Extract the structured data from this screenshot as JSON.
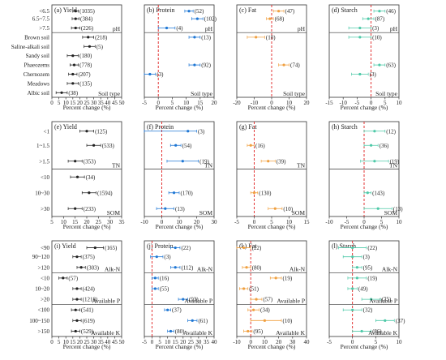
{
  "axis_label": "Percent change (%)",
  "colors": {
    "yield": "#222222",
    "protein": "#1f77d4",
    "fat": "#f0a040",
    "starch": "#4ec9a8",
    "zero_line": "#e02020"
  },
  "chart_data": [
    {
      "id": "a",
      "type": "scatter",
      "title": "(a) Yield",
      "xlim": [
        0,
        50
      ],
      "ticks": [
        0,
        5,
        10,
        15,
        20,
        25,
        30,
        35,
        40,
        45,
        50
      ],
      "groups": [
        {
          "label": "pH",
          "rows": [
            {
              "cat": "<6.5",
              "v": 17,
              "lo": 15,
              "hi": 19,
              "n": "(1035)"
            },
            {
              "cat": "6.5~7.5",
              "v": 17,
              "lo": 14.5,
              "hi": 19.5,
              "n": "(384)"
            },
            {
              "cat": ">7.5",
              "v": 17,
              "lo": 14,
              "hi": 20,
              "n": "(226)"
            }
          ]
        },
        {
          "label": "Soil type",
          "rows": [
            {
              "cat": "Brown soil",
              "v": 26,
              "lo": 22,
              "hi": 30,
              "n": "(218)"
            },
            {
              "cat": "Saline-alkali soil",
              "v": 27,
              "lo": 23,
              "hi": 31,
              "n": "(5)"
            },
            {
              "cat": "Sandy soil",
              "v": 15,
              "lo": 11,
              "hi": 19,
              "n": "(180)"
            },
            {
              "cat": "Phaeozems",
              "v": 16,
              "lo": 13,
              "hi": 19,
              "n": "(778)"
            },
            {
              "cat": "Chernozem",
              "v": 15,
              "lo": 12,
              "hi": 18,
              "n": "(207)"
            },
            {
              "cat": "Meadows",
              "v": 15,
              "lo": 11,
              "hi": 19,
              "n": "(135)"
            },
            {
              "cat": "Albic soil",
              "v": 7,
              "lo": 3,
              "hi": 11,
              "n": "(38)"
            }
          ]
        }
      ]
    },
    {
      "id": "b",
      "type": "scatter",
      "title": "(b) Protein",
      "xlim": [
        -5,
        20
      ],
      "ticks": [
        -5,
        0,
        5,
        10,
        15,
        20
      ],
      "groups": [
        {
          "label": "pH",
          "rows": [
            {
              "v": 11,
              "lo": 9.5,
              "hi": 12.5,
              "n": "(52)"
            },
            {
              "v": 14,
              "lo": 12,
              "hi": 16,
              "n": "(102)"
            },
            {
              "v": 3,
              "lo": 0,
              "hi": 6,
              "n": "(4)"
            }
          ]
        },
        {
          "label": "Soil type",
          "rows": [
            {
              "v": 13,
              "lo": 11,
              "hi": 15,
              "n": "(13)"
            },
            {
              "v": null
            },
            {
              "v": null
            },
            {
              "v": 13,
              "lo": 11,
              "hi": 15,
              "n": "(92)"
            },
            {
              "v": -3,
              "lo": -5,
              "hi": -1,
              "n": "(3)"
            },
            {
              "v": null
            },
            {
              "v": null
            }
          ]
        }
      ]
    },
    {
      "id": "c",
      "type": "scatter",
      "title": "(c) Fat",
      "xlim": [
        -20,
        20
      ],
      "ticks": [
        -20,
        -10,
        0,
        10,
        20
      ],
      "groups": [
        {
          "label": "pH",
          "rows": [
            {
              "v": 4,
              "lo": 1,
              "hi": 7,
              "n": "(47)"
            },
            {
              "v": -1,
              "lo": -3,
              "hi": 1,
              "n": "(68)"
            },
            {
              "v": null
            }
          ]
        },
        {
          "label": "Soil type",
          "rows": [
            {
              "v": -9,
              "lo": -14,
              "hi": -4,
              "n": "(10)"
            },
            {
              "v": null
            },
            {
              "v": null
            },
            {
              "v": 7,
              "lo": 4,
              "hi": 10,
              "n": "(74)"
            },
            {
              "v": null
            },
            {
              "v": null
            },
            {
              "v": null
            }
          ]
        }
      ]
    },
    {
      "id": "d",
      "type": "scatter",
      "title": "(d) Starch",
      "xlim": [
        -15,
        10
      ],
      "ticks": [
        -15,
        -10,
        -5,
        0,
        5,
        10
      ],
      "groups": [
        {
          "label": "pH",
          "rows": [
            {
              "v": 3,
              "lo": 1,
              "hi": 5,
              "n": "(46)"
            },
            {
              "v": -1,
              "lo": -3,
              "hi": 1,
              "n": "(87)"
            },
            {
              "v": -4,
              "lo": -8,
              "hi": 0,
              "n": "(3)"
            }
          ]
        },
        {
          "label": "Soil type",
          "rows": [
            {
              "v": -4,
              "lo": -8,
              "hi": 0,
              "n": "(10)"
            },
            {
              "v": null
            },
            {
              "v": null
            },
            {
              "v": 3,
              "lo": 1,
              "hi": 5,
              "n": "(63)"
            },
            {
              "v": -4,
              "lo": -7,
              "hi": -1,
              "n": "(3)"
            },
            {
              "v": null
            },
            {
              "v": null
            }
          ]
        }
      ]
    },
    {
      "id": "e",
      "type": "scatter",
      "title": "(e) Yield",
      "xlim": [
        5,
        35
      ],
      "ticks": [
        5,
        10,
        15,
        20,
        25,
        30,
        35
      ],
      "groups": [
        {
          "label": "TN",
          "rows": [
            {
              "cat": "<1",
              "v": 20,
              "lo": 17,
              "hi": 23,
              "n": "(125)"
            },
            {
              "cat": "1~1.5",
              "v": 23,
              "lo": 20,
              "hi": 26,
              "n": "(533)"
            },
            {
              "cat": ">1.5",
              "v": 15,
              "lo": 12,
              "hi": 18,
              "n": "(353)"
            }
          ]
        },
        {
          "label": "SOM",
          "rows": [
            {
              "cat": "<10",
              "v": 16,
              "lo": 13,
              "hi": 19,
              "n": "(34)"
            },
            {
              "cat": "10~30",
              "v": 21,
              "lo": 18,
              "hi": 24,
              "n": "(1594)"
            },
            {
              "cat": ">30",
              "v": 15,
              "lo": 12,
              "hi": 18,
              "n": "(233)"
            }
          ]
        }
      ]
    },
    {
      "id": "f",
      "type": "scatter",
      "title": "(f) Protein",
      "xlim": [
        -10,
        30
      ],
      "ticks": [
        -10,
        0,
        10,
        20,
        30
      ],
      "groups": [
        {
          "label": "TN",
          "rows": [
            {
              "v": 15,
              "lo": -10,
              "hi": 20,
              "n": "(3)"
            },
            {
              "v": 8,
              "lo": 5,
              "hi": 11,
              "n": "(54)"
            },
            {
              "v": 12,
              "lo": 3,
              "hi": 21,
              "n": "(19)"
            }
          ]
        },
        {
          "label": "SOM",
          "rows": [
            {
              "v": null
            },
            {
              "v": 7,
              "lo": 4,
              "hi": 10,
              "n": "(170)"
            },
            {
              "v": 2,
              "lo": -3,
              "hi": 7,
              "n": "(13)"
            }
          ]
        }
      ]
    },
    {
      "id": "g",
      "type": "scatter",
      "title": "(g) Fat",
      "xlim": [
        -5,
        15
      ],
      "ticks": [
        -5,
        0,
        5,
        10,
        15
      ],
      "groups": [
        {
          "label": "TN",
          "rows": [
            {
              "v": null
            },
            {
              "v": -1,
              "lo": -2,
              "hi": 0,
              "n": "(16)"
            },
            {
              "v": 4,
              "lo": 2,
              "hi": 6,
              "n": "(39)"
            }
          ]
        },
        {
          "label": "SOM",
          "rows": [
            {
              "v": null
            },
            {
              "v": 0,
              "lo": -1,
              "hi": 1,
              "n": "(130)"
            },
            {
              "v": 6,
              "lo": 4,
              "hi": 8,
              "n": "(10)"
            }
          ]
        }
      ]
    },
    {
      "id": "h",
      "type": "scatter",
      "title": "(h) Starch",
      "xlim": [
        -10,
        10
      ],
      "ticks": [
        -10,
        -5,
        0,
        5,
        10
      ],
      "groups": [
        {
          "label": "TN",
          "rows": [
            {
              "v": 3,
              "lo": 0,
              "hi": 6,
              "n": "(12)"
            },
            {
              "v": 2,
              "lo": 0,
              "hi": 4,
              "n": "(36)"
            },
            {
              "v": 3,
              "lo": -1,
              "hi": 7,
              "n": "(19)"
            }
          ]
        },
        {
          "label": "SOM",
          "rows": [
            {
              "v": null
            },
            {
              "v": 1,
              "lo": 0,
              "hi": 2,
              "n": "(143)"
            },
            {
              "v": 4,
              "lo": 0,
              "hi": 8,
              "n": "(13)"
            }
          ]
        }
      ]
    },
    {
      "id": "i",
      "type": "scatter",
      "title": "(i) Yield",
      "xlim": [
        0,
        50
      ],
      "ticks": [
        0,
        5,
        10,
        15,
        20,
        25,
        30,
        35,
        40,
        45,
        50
      ],
      "groups": [
        {
          "label": "Alk-N",
          "rows": [
            {
              "cat": "<90",
              "v": 31,
              "lo": 25,
              "hi": 37,
              "n": "(165)"
            },
            {
              "cat": "90~120",
              "v": 18,
              "lo": 15,
              "hi": 21,
              "n": "(375)"
            },
            {
              "cat": ">120",
              "v": 21,
              "lo": 18,
              "hi": 24,
              "n": "(303)"
            }
          ]
        },
        {
          "label": "Available P",
          "rows": [
            {
              "cat": "<10",
              "v": 8,
              "lo": 5,
              "hi": 11,
              "n": "(57)"
            },
            {
              "cat": "10~20",
              "v": 18,
              "lo": 15,
              "hi": 21,
              "n": "(424)"
            },
            {
              "cat": ">20",
              "v": 18,
              "lo": 15,
              "hi": 21,
              "n": "(1218)"
            }
          ]
        },
        {
          "label": "Available K",
          "rows": [
            {
              "cat": "<100",
              "v": 17,
              "lo": 14,
              "hi": 20,
              "n": "(541)"
            },
            {
              "cat": "100~150",
              "v": 18,
              "lo": 15,
              "hi": 21,
              "n": "(619)"
            },
            {
              "cat": ">150",
              "v": 17,
              "lo": 14,
              "hi": 20,
              "n": "(529)"
            }
          ]
        }
      ]
    },
    {
      "id": "j",
      "type": "scatter",
      "title": "(j) Protein",
      "xlim": [
        -5,
        40
      ],
      "ticks": [
        -5,
        0,
        5,
        10,
        15,
        20,
        25,
        30,
        35,
        40
      ],
      "groups": [
        {
          "label": "Alk-N",
          "rows": [
            {
              "v": 15,
              "lo": 12,
              "hi": 18,
              "n": "(22)"
            },
            {
              "v": 3,
              "lo": -1,
              "hi": 7,
              "n": "(3)"
            },
            {
              "v": 15,
              "lo": 12,
              "hi": 18,
              "n": "(112)"
            }
          ]
        },
        {
          "label": "Available P",
          "rows": [
            {
              "v": 2,
              "lo": 0,
              "hi": 4,
              "n": "(16)"
            },
            {
              "v": 2,
              "lo": 0,
              "hi": 4,
              "n": "(55)"
            },
            {
              "v": 20,
              "lo": 17,
              "hi": 23,
              "n": "(93)"
            }
          ]
        },
        {
          "label": "Available K",
          "rows": [
            {
              "v": 10,
              "lo": 8,
              "hi": 12,
              "n": "(37)"
            },
            {
              "v": 26,
              "lo": 23,
              "hi": 29,
              "n": "(61)"
            },
            {
              "v": 12,
              "lo": 10,
              "hi": 14,
              "n": "(80)"
            }
          ]
        }
      ]
    },
    {
      "id": "k",
      "type": "scatter",
      "title": "(k) Fat",
      "xlim": [
        -10,
        40
      ],
      "ticks": [
        -10,
        0,
        10,
        20,
        30,
        40
      ],
      "groups": [
        {
          "label": "Alk-N",
          "rows": [
            {
              "v": -5,
              "lo": -10,
              "hi": 0,
              "n": "(22)"
            },
            {
              "v": null
            },
            {
              "v": -3,
              "lo": -6,
              "hi": 0,
              "n": "(80)"
            }
          ]
        },
        {
          "label": "Available P",
          "rows": [
            {
              "v": 18,
              "lo": 14,
              "hi": 22,
              "n": "(19)"
            },
            {
              "v": -5,
              "lo": -8,
              "hi": -2,
              "n": "(51)"
            },
            {
              "v": 4,
              "lo": 0,
              "hi": 8,
              "n": "(57)"
            }
          ]
        },
        {
          "label": "Available K",
          "rows": [
            {
              "v": 2,
              "lo": -2,
              "hi": 6,
              "n": "(34)"
            },
            {
              "v": 10,
              "lo": 0,
              "hi": 22,
              "n": "(10)"
            },
            {
              "v": -2,
              "lo": -5,
              "hi": 1,
              "n": "(95)"
            }
          ]
        }
      ]
    },
    {
      "id": "l",
      "type": "scatter",
      "title": "(l) Starch",
      "xlim": [
        -5,
        10
      ],
      "ticks": [
        -5,
        0,
        5,
        10
      ],
      "groups": [
        {
          "label": "Alk-N",
          "rows": [
            {
              "v": 0,
              "lo": -3,
              "hi": 3,
              "n": "(22)"
            },
            {
              "v": 0,
              "lo": -2,
              "hi": 2,
              "n": "(3)"
            },
            {
              "v": 1,
              "lo": 0,
              "hi": 2,
              "n": "(95)"
            }
          ]
        },
        {
          "label": "Available P",
          "rows": [
            {
              "v": 1,
              "lo": -1,
              "hi": 3,
              "n": "(19)"
            },
            {
              "v": 0,
              "lo": -1,
              "hi": 1,
              "n": "(49)"
            },
            {
              "v": 4,
              "lo": 2,
              "hi": 6,
              "n": "(75)"
            }
          ]
        },
        {
          "label": "Available K",
          "rows": [
            {
              "v": 0,
              "lo": -2,
              "hi": 2,
              "n": "(32)"
            },
            {
              "v": 7,
              "lo": 5,
              "hi": 9,
              "n": "(37)"
            },
            {
              "v": 2,
              "lo": 0,
              "hi": 4,
              "n": "(86)"
            }
          ]
        }
      ]
    }
  ]
}
